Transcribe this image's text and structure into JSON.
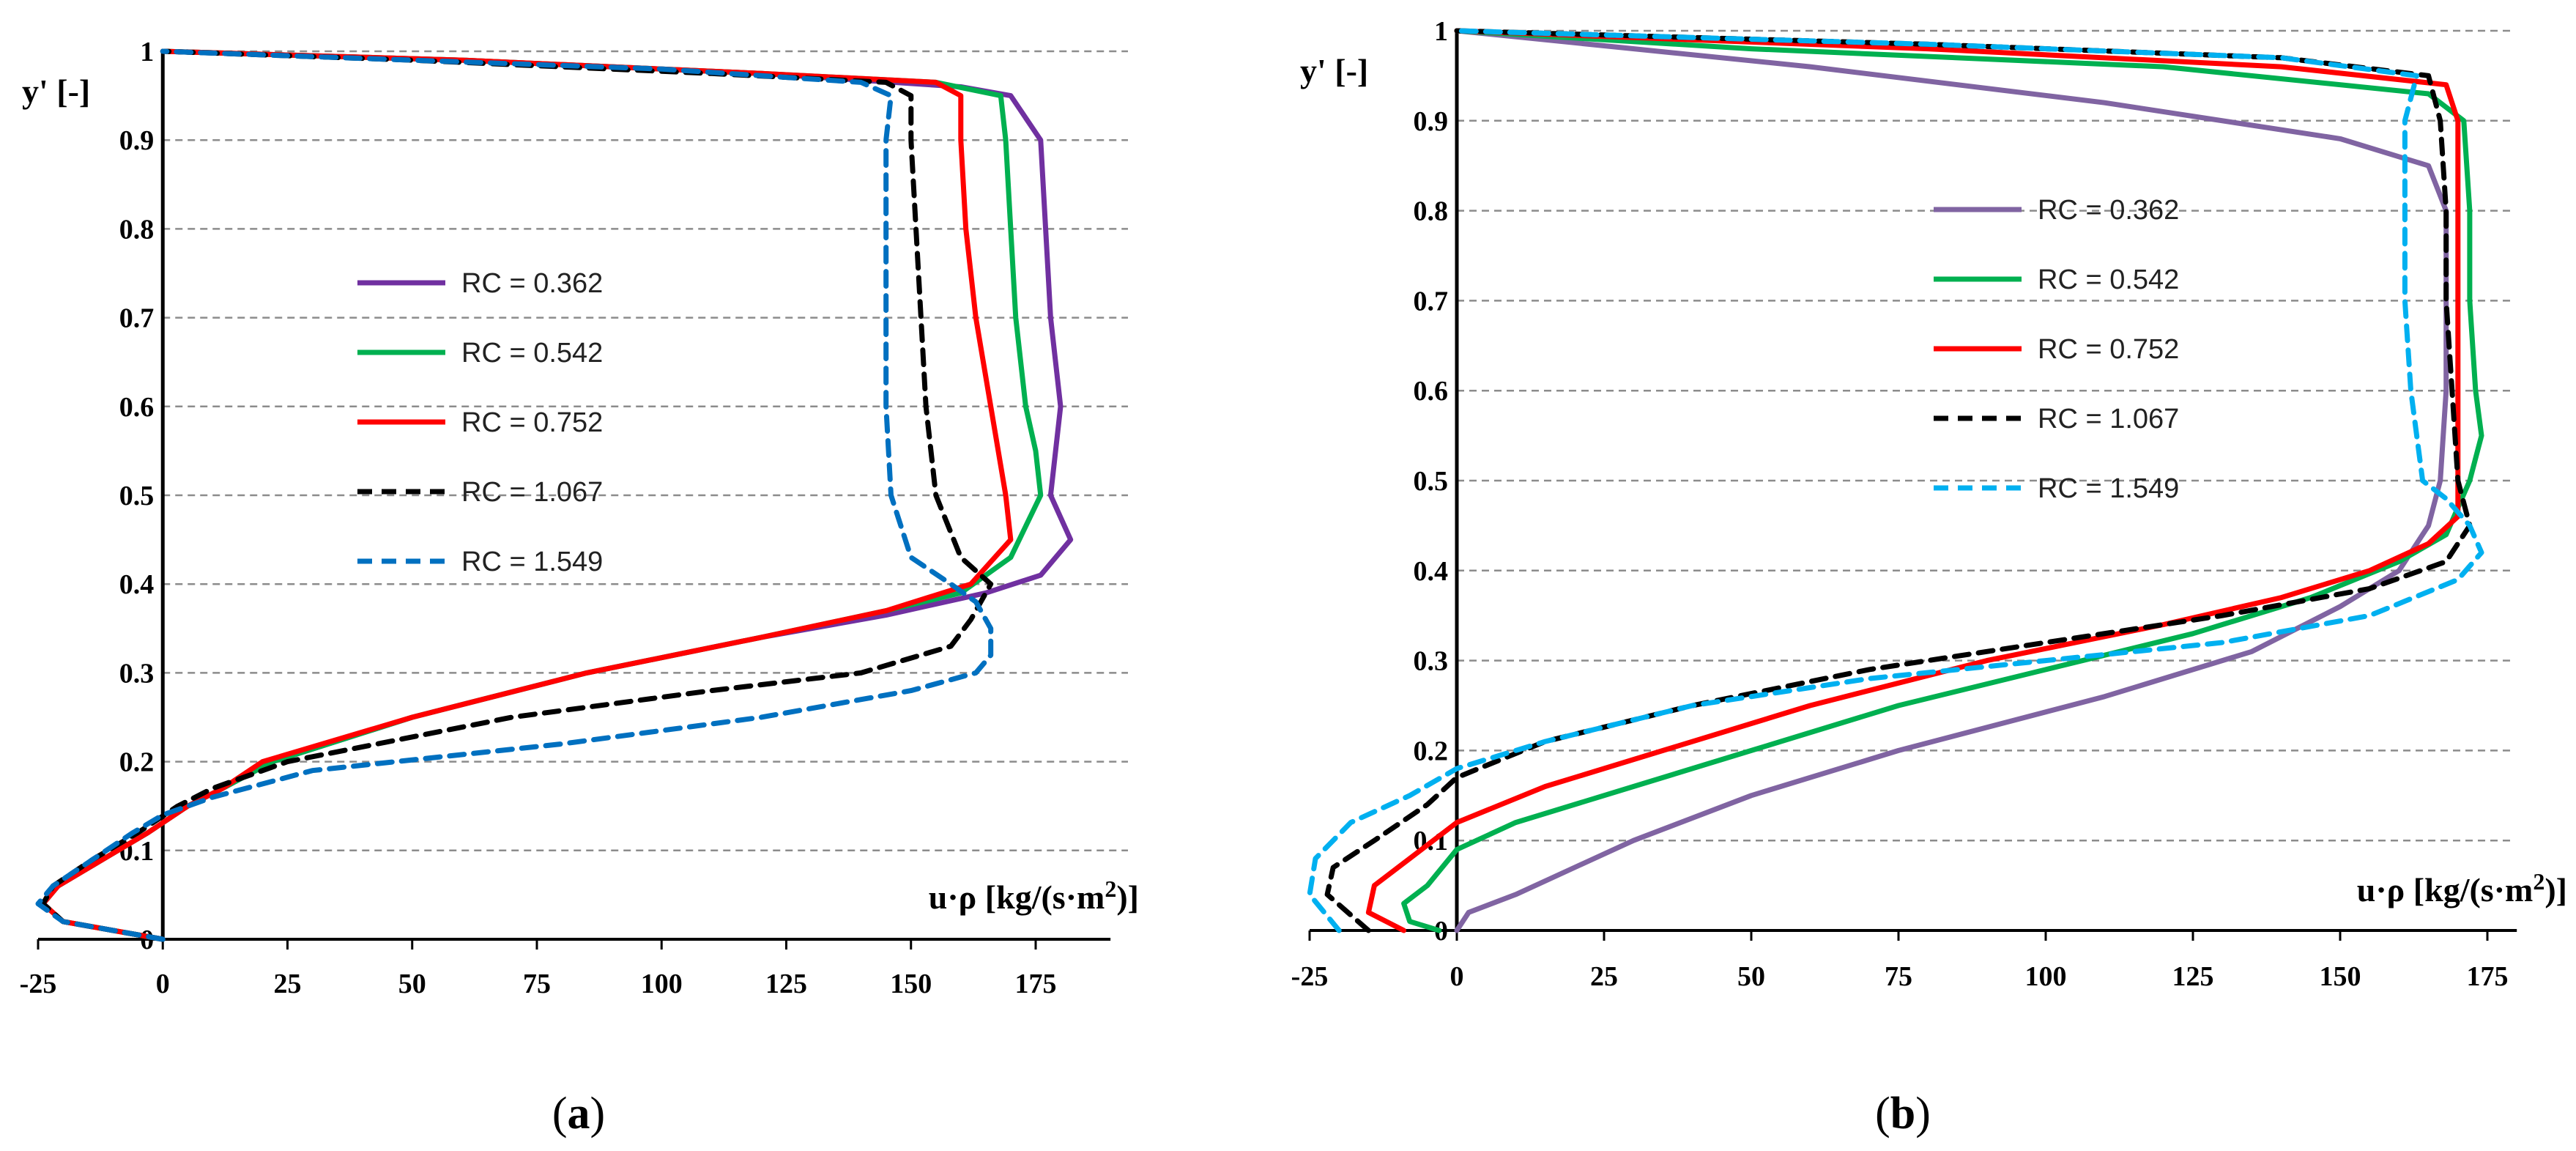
{
  "figure": {
    "label_a": "a",
    "label_b": "b"
  },
  "chart_data": [
    {
      "type": "line",
      "panel": "a",
      "xlabel": "u·ρ [kg/(s·m²)]",
      "xlabel_parts": {
        "main": "u·ρ [kg/(s·m",
        "sup": "2",
        "tail": ")]"
      },
      "ylabel": "y' [-]",
      "xlim": [
        -25,
        190
      ],
      "ylim": [
        0,
        1
      ],
      "xticks": [
        -25,
        0,
        25,
        50,
        75,
        100,
        125,
        150,
        175
      ],
      "yticks": [
        0,
        0.1,
        0.2,
        0.3,
        0.4,
        0.5,
        0.6,
        0.7,
        0.8,
        0.9,
        1
      ],
      "ytick_labels": [
        "0",
        "0.1",
        "0.2",
        "0.3",
        "0.4",
        "0.5",
        "0.6",
        "0.7",
        "0.8",
        "0.9",
        "1"
      ],
      "grid": "horizontal dashed",
      "legend_position": "center",
      "series": [
        {
          "name": "RC = 0.362",
          "color": "#7030A0",
          "dashed": false,
          "points": [
            [
              0,
              0
            ],
            [
              -10,
              0.01
            ],
            [
              -20,
              0.02
            ],
            [
              -24,
              0.04
            ],
            [
              -21,
              0.06
            ],
            [
              -12,
              0.09
            ],
            [
              -3,
              0.12
            ],
            [
              5,
              0.15
            ],
            [
              12,
              0.17
            ],
            [
              22,
              0.2
            ],
            [
              50,
              0.25
            ],
            [
              85,
              0.3
            ],
            [
              120,
              0.34
            ],
            [
              145,
              0.365
            ],
            [
              165,
              0.39
            ],
            [
              176,
              0.41
            ],
            [
              182,
              0.45
            ],
            [
              178,
              0.5
            ],
            [
              180,
              0.6
            ],
            [
              178,
              0.7
            ],
            [
              177,
              0.8
            ],
            [
              176,
              0.9
            ],
            [
              170,
              0.95
            ],
            [
              160,
              0.96
            ],
            [
              120,
              0.975
            ],
            [
              60,
              0.99
            ],
            [
              0,
              1
            ]
          ]
        },
        {
          "name": "RC = 0.542",
          "color": "#00B050",
          "dashed": false,
          "points": [
            [
              0,
              0
            ],
            [
              -10,
              0.01
            ],
            [
              -20,
              0.02
            ],
            [
              -24,
              0.04
            ],
            [
              -21,
              0.06
            ],
            [
              -12,
              0.09
            ],
            [
              -3,
              0.12
            ],
            [
              5,
              0.15
            ],
            [
              12,
              0.17
            ],
            [
              22,
              0.2
            ],
            [
              50,
              0.25
            ],
            [
              85,
              0.3
            ],
            [
              120,
              0.34
            ],
            [
              145,
              0.37
            ],
            [
              160,
              0.39
            ],
            [
              170,
              0.43
            ],
            [
              176,
              0.5
            ],
            [
              175,
              0.55
            ],
            [
              173,
              0.6
            ],
            [
              171,
              0.7
            ],
            [
              170,
              0.8
            ],
            [
              169,
              0.9
            ],
            [
              168,
              0.95
            ],
            [
              155,
              0.965
            ],
            [
              120,
              0.975
            ],
            [
              60,
              0.99
            ],
            [
              0,
              1
            ]
          ]
        },
        {
          "name": "RC = 0.752",
          "color": "#FF0000",
          "dashed": false,
          "points": [
            [
              0,
              0
            ],
            [
              -10,
              0.01
            ],
            [
              -20,
              0.02
            ],
            [
              -24,
              0.04
            ],
            [
              -21,
              0.06
            ],
            [
              -12,
              0.09
            ],
            [
              -3,
              0.12
            ],
            [
              5,
              0.15
            ],
            [
              12,
              0.17
            ],
            [
              20,
              0.2
            ],
            [
              50,
              0.25
            ],
            [
              85,
              0.3
            ],
            [
              120,
              0.34
            ],
            [
              145,
              0.37
            ],
            [
              162,
              0.4
            ],
            [
              170,
              0.45
            ],
            [
              169,
              0.5
            ],
            [
              166,
              0.6
            ],
            [
              163,
              0.7
            ],
            [
              161,
              0.8
            ],
            [
              160,
              0.9
            ],
            [
              160,
              0.95
            ],
            [
              155,
              0.965
            ],
            [
              120,
              0.975
            ],
            [
              60,
              0.99
            ],
            [
              0,
              1
            ]
          ]
        },
        {
          "name": "RC = 1.067",
          "color": "#000000",
          "dashed": true,
          "points": [
            [
              0,
              0
            ],
            [
              -10,
              0.01
            ],
            [
              -20,
              0.02
            ],
            [
              -24,
              0.04
            ],
            [
              -22,
              0.06
            ],
            [
              -14,
              0.09
            ],
            [
              -5,
              0.12
            ],
            [
              3,
              0.15
            ],
            [
              10,
              0.17
            ],
            [
              25,
              0.2
            ],
            [
              70,
              0.25
            ],
            [
              110,
              0.28
            ],
            [
              140,
              0.3
            ],
            [
              158,
              0.33
            ],
            [
              162,
              0.36
            ],
            [
              166,
              0.4
            ],
            [
              160,
              0.43
            ],
            [
              155,
              0.5
            ],
            [
              153,
              0.6
            ],
            [
              152,
              0.7
            ],
            [
              151,
              0.8
            ],
            [
              150,
              0.9
            ],
            [
              150,
              0.95
            ],
            [
              145,
              0.965
            ],
            [
              110,
              0.975
            ],
            [
              50,
              0.99
            ],
            [
              0,
              1
            ]
          ]
        },
        {
          "name": "RC = 1.549",
          "color": "#0070C0",
          "dashed": true,
          "points": [
            [
              0,
              0
            ],
            [
              -10,
              0.01
            ],
            [
              -20,
              0.02
            ],
            [
              -25,
              0.04
            ],
            [
              -22,
              0.06
            ],
            [
              -14,
              0.09
            ],
            [
              -6,
              0.12
            ],
            [
              0,
              0.14
            ],
            [
              10,
              0.16
            ],
            [
              30,
              0.19
            ],
            [
              80,
              0.22
            ],
            [
              120,
              0.25
            ],
            [
              150,
              0.28
            ],
            [
              163,
              0.3
            ],
            [
              166,
              0.32
            ],
            [
              166,
              0.35
            ],
            [
              163,
              0.38
            ],
            [
              158,
              0.4
            ],
            [
              150,
              0.43
            ],
            [
              146,
              0.5
            ],
            [
              145,
              0.6
            ],
            [
              145,
              0.7
            ],
            [
              145,
              0.8
            ],
            [
              145,
              0.9
            ],
            [
              146,
              0.95
            ],
            [
              140,
              0.965
            ],
            [
              100,
              0.98
            ],
            [
              50,
              0.99
            ],
            [
              0,
              1
            ]
          ]
        }
      ]
    },
    {
      "type": "line",
      "panel": "b",
      "xlabel": "u·ρ [kg/(s·m²)]",
      "xlabel_parts": {
        "main": "u·ρ [kg/(s·m",
        "sup": "2",
        "tail": ")]"
      },
      "ylabel": "y' [-]",
      "xlim": [
        -25,
        180
      ],
      "ylim": [
        0,
        1
      ],
      "xticks": [
        -25,
        0,
        25,
        50,
        75,
        100,
        125,
        150,
        175
      ],
      "yticks": [
        0,
        0.1,
        0.2,
        0.3,
        0.4,
        0.5,
        0.6,
        0.7,
        0.8,
        0.9,
        1
      ],
      "ytick_labels": [
        "0",
        "0.1",
        "0.2",
        "0.3",
        "0.4",
        "0.5",
        "0.6",
        "0.7",
        "0.8",
        "0.9",
        "1"
      ],
      "grid": "horizontal dashed",
      "legend_position": "center",
      "series": [
        {
          "name": "RC = 0.362",
          "color": "#8064A2",
          "dashed": false,
          "points": [
            [
              0,
              0
            ],
            [
              2,
              0.02
            ],
            [
              10,
              0.04
            ],
            [
              20,
              0.07
            ],
            [
              30,
              0.1
            ],
            [
              50,
              0.15
            ],
            [
              75,
              0.2
            ],
            [
              110,
              0.26
            ],
            [
              135,
              0.31
            ],
            [
              150,
              0.36
            ],
            [
              160,
              0.4
            ],
            [
              165,
              0.45
            ],
            [
              167,
              0.5
            ],
            [
              168,
              0.6
            ],
            [
              168,
              0.7
            ],
            [
              168,
              0.8
            ],
            [
              165,
              0.85
            ],
            [
              150,
              0.88
            ],
            [
              110,
              0.92
            ],
            [
              60,
              0.96
            ],
            [
              0,
              1
            ]
          ]
        },
        {
          "name": "RC = 0.542",
          "color": "#00B050",
          "dashed": false,
          "points": [
            [
              -3,
              0
            ],
            [
              -8,
              0.01
            ],
            [
              -9,
              0.03
            ],
            [
              -5,
              0.05
            ],
            [
              0,
              0.09
            ],
            [
              10,
              0.12
            ],
            [
              30,
              0.16
            ],
            [
              50,
              0.2
            ],
            [
              75,
              0.25
            ],
            [
              100,
              0.29
            ],
            [
              125,
              0.33
            ],
            [
              145,
              0.37
            ],
            [
              160,
              0.41
            ],
            [
              168,
              0.44
            ],
            [
              172,
              0.5
            ],
            [
              174,
              0.55
            ],
            [
              173,
              0.6
            ],
            [
              172,
              0.7
            ],
            [
              172,
              0.8
            ],
            [
              171,
              0.9
            ],
            [
              165,
              0.93
            ],
            [
              120,
              0.96
            ],
            [
              50,
              0.98
            ],
            [
              0,
              1
            ]
          ]
        },
        {
          "name": "RC = 0.752",
          "color": "#FF0000",
          "dashed": false,
          "points": [
            [
              -9,
              0
            ],
            [
              -15,
              0.02
            ],
            [
              -14,
              0.05
            ],
            [
              -8,
              0.08
            ],
            [
              0,
              0.12
            ],
            [
              15,
              0.16
            ],
            [
              35,
              0.2
            ],
            [
              60,
              0.25
            ],
            [
              90,
              0.3
            ],
            [
              120,
              0.34
            ],
            [
              140,
              0.37
            ],
            [
              155,
              0.4
            ],
            [
              165,
              0.43
            ],
            [
              170,
              0.46
            ],
            [
              170,
              0.5
            ],
            [
              170,
              0.6
            ],
            [
              170,
              0.7
            ],
            [
              170,
              0.8
            ],
            [
              170,
              0.9
            ],
            [
              168,
              0.94
            ],
            [
              140,
              0.96
            ],
            [
              80,
              0.98
            ],
            [
              0,
              1
            ]
          ]
        },
        {
          "name": "RC = 1.067",
          "color": "#000000",
          "dashed": true,
          "points": [
            [
              -15,
              0
            ],
            [
              -22,
              0.04
            ],
            [
              -21,
              0.07
            ],
            [
              -14,
              0.1
            ],
            [
              -5,
              0.14
            ],
            [
              0,
              0.17
            ],
            [
              15,
              0.21
            ],
            [
              40,
              0.25
            ],
            [
              70,
              0.29
            ],
            [
              100,
              0.32
            ],
            [
              130,
              0.35
            ],
            [
              155,
              0.38
            ],
            [
              168,
              0.41
            ],
            [
              172,
              0.45
            ],
            [
              170,
              0.5
            ],
            [
              169,
              0.6
            ],
            [
              168,
              0.7
            ],
            [
              168,
              0.8
            ],
            [
              167,
              0.9
            ],
            [
              165,
              0.95
            ],
            [
              140,
              0.97
            ],
            [
              80,
              0.985
            ],
            [
              0,
              1
            ]
          ]
        },
        {
          "name": "RC = 1.549",
          "color": "#00B0F0",
          "dashed": true,
          "points": [
            [
              -20,
              0
            ],
            [
              -25,
              0.04
            ],
            [
              -24,
              0.08
            ],
            [
              -18,
              0.12
            ],
            [
              -8,
              0.15
            ],
            [
              0,
              0.18
            ],
            [
              15,
              0.21
            ],
            [
              40,
              0.25
            ],
            [
              70,
              0.28
            ],
            [
              100,
              0.3
            ],
            [
              130,
              0.32
            ],
            [
              155,
              0.35
            ],
            [
              170,
              0.39
            ],
            [
              174,
              0.42
            ],
            [
              172,
              0.45
            ],
            [
              168,
              0.48
            ],
            [
              164,
              0.5
            ],
            [
              162,
              0.6
            ],
            [
              161,
              0.7
            ],
            [
              161,
              0.8
            ],
            [
              161,
              0.9
            ],
            [
              163,
              0.95
            ],
            [
              140,
              0.97
            ],
            [
              80,
              0.985
            ],
            [
              0,
              1
            ]
          ]
        }
      ]
    }
  ]
}
